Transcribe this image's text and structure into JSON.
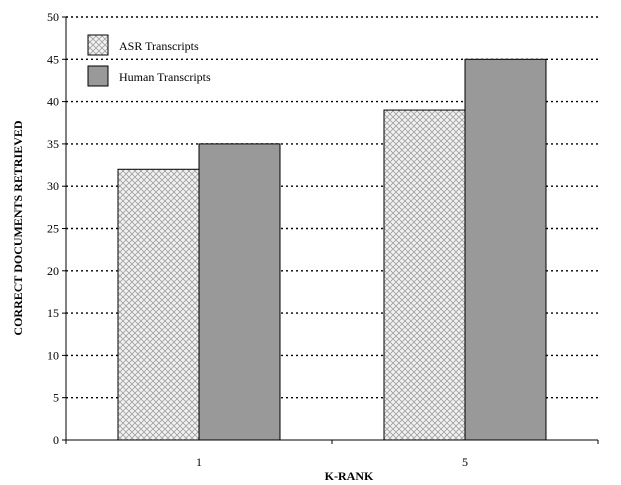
{
  "chart_data": {
    "type": "bar",
    "title": "",
    "xlabel": "K-RANK",
    "ylabel": "CORRECT DOCUMENTS RETRIEVED",
    "categories": [
      "1",
      "5"
    ],
    "series": [
      {
        "name": "ASR Transcripts",
        "values": [
          32,
          39
        ],
        "color": "#e6e6e6",
        "pattern": "crosshatch"
      },
      {
        "name": "Human Transcripts",
        "values": [
          35,
          45
        ],
        "color": "#999999",
        "pattern": "solid"
      }
    ],
    "ylim": [
      0,
      50
    ],
    "yticks": [
      0,
      5,
      10,
      15,
      20,
      25,
      30,
      35,
      40,
      45,
      50
    ],
    "grid": "horizontal-dotted",
    "legend_position": "top-left"
  }
}
